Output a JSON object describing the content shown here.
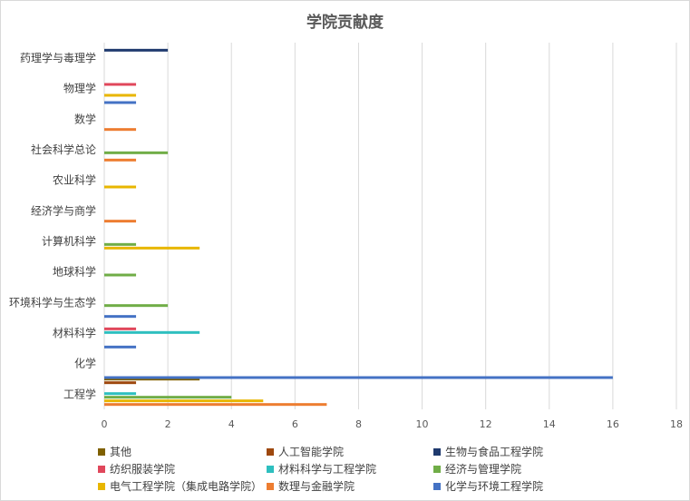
{
  "chart_data": {
    "type": "bar",
    "orientation": "horizontal",
    "title": "学院贡献度",
    "xlabel": "",
    "ylabel": "",
    "xlim": [
      0,
      18
    ],
    "x_ticks": [
      0,
      2,
      4,
      6,
      8,
      10,
      12,
      14,
      16,
      18
    ],
    "grid": "vertical",
    "legend_position": "bottom",
    "categories": [
      "工程学",
      "化学",
      "材料科学",
      "环境科学与生态学",
      "地球科学",
      "计算机科学",
      "经济学与商学",
      "农业科学",
      "社会科学总论",
      "数学",
      "物理学",
      "药理学与毒理学"
    ],
    "series": [
      {
        "name": "化学与环境工程学院",
        "color": "#4472c4",
        "values": [
          0,
          16,
          1,
          1,
          0,
          0,
          0,
          0,
          0,
          0,
          1,
          0
        ]
      },
      {
        "name": "数理与金融学院",
        "color": "#ed7d31",
        "values": [
          7,
          0,
          0,
          0,
          0,
          0,
          1,
          0,
          1,
          1,
          0,
          0
        ]
      },
      {
        "name": "电气工程学院（集成电路学院）",
        "color": "#e8b600",
        "values": [
          5,
          0,
          0,
          0,
          0,
          3,
          0,
          1,
          0,
          0,
          1,
          0
        ]
      },
      {
        "name": "经济与管理学院",
        "color": "#70ad47",
        "values": [
          4,
          0,
          0,
          2,
          1,
          1,
          0,
          0,
          2,
          0,
          0,
          0
        ]
      },
      {
        "name": "材料科学与工程学院",
        "color": "#2ebfbf",
        "values": [
          1,
          0,
          3,
          0,
          0,
          0,
          0,
          0,
          0,
          0,
          0,
          0
        ]
      },
      {
        "name": "纺织服装学院",
        "color": "#e0475b",
        "values": [
          0,
          0,
          1,
          0,
          0,
          0,
          0,
          0,
          0,
          0,
          1,
          0
        ]
      },
      {
        "name": "生物与食品工程学院",
        "color": "#1f3a6e",
        "values": [
          0,
          0,
          0,
          0,
          0,
          0,
          0,
          0,
          0,
          0,
          0,
          2
        ]
      },
      {
        "name": "人工智能学院",
        "color": "#9e480e",
        "values": [
          1,
          0,
          0,
          0,
          0,
          0,
          0,
          0,
          0,
          0,
          0,
          0
        ]
      },
      {
        "name": "其他",
        "color": "#7f6000",
        "values": [
          3,
          0,
          0,
          0,
          0,
          0,
          0,
          0,
          0,
          0,
          0,
          0
        ]
      }
    ],
    "legend_order": [
      "其他",
      "人工智能学院",
      "生物与食品工程学院",
      "纺织服装学院",
      "材料科学与工程学院",
      "经济与管理学院",
      "电气工程学院（集成电路学院）",
      "数理与金融学院",
      "化学与环境工程学院"
    ]
  }
}
